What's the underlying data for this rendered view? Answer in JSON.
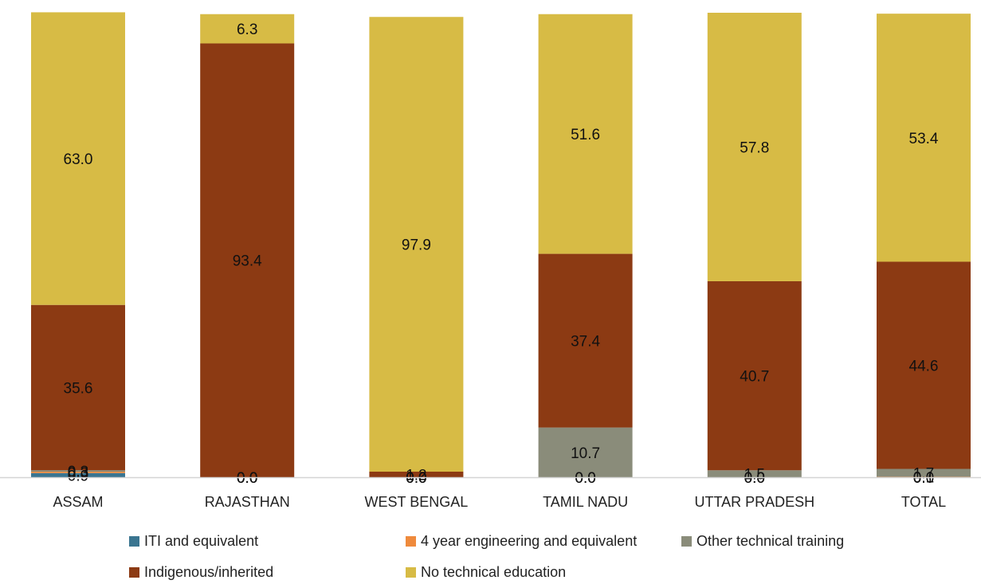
{
  "chart_data": {
    "type": "bar",
    "stacked": true,
    "categories": [
      "ASSAM",
      "RAJASTHAN",
      "WEST BENGAL",
      "TAMIL NADU",
      "UTTAR PRADESH",
      "TOTAL"
    ],
    "series": [
      {
        "name": "ITI and equivalent",
        "color": "#3a7590",
        "values": [
          0.9,
          0.0,
          0.0,
          0.0,
          0.0,
          0.0
        ]
      },
      {
        "name": "4 year engineering and equivalent",
        "color": "#ef8a3c",
        "values": [
          0.3,
          0.0,
          0.0,
          0.0,
          0.0,
          0.1
        ]
      },
      {
        "name": "Other technical training",
        "color": "#8a8c7a",
        "values": [
          0.3,
          0.0,
          0.0,
          10.7,
          1.5,
          1.7
        ]
      },
      {
        "name": "Indigenous/inherited",
        "color": "#8c3a13",
        "values": [
          35.6,
          93.4,
          1.2,
          37.4,
          40.7,
          44.6
        ]
      },
      {
        "name": "No technical education",
        "color": "#d7bb45",
        "values": [
          63.0,
          6.3,
          97.9,
          51.6,
          57.8,
          53.4
        ]
      }
    ],
    "ylim": [
      0,
      100
    ],
    "legend_position": "bottom",
    "grid": false
  }
}
